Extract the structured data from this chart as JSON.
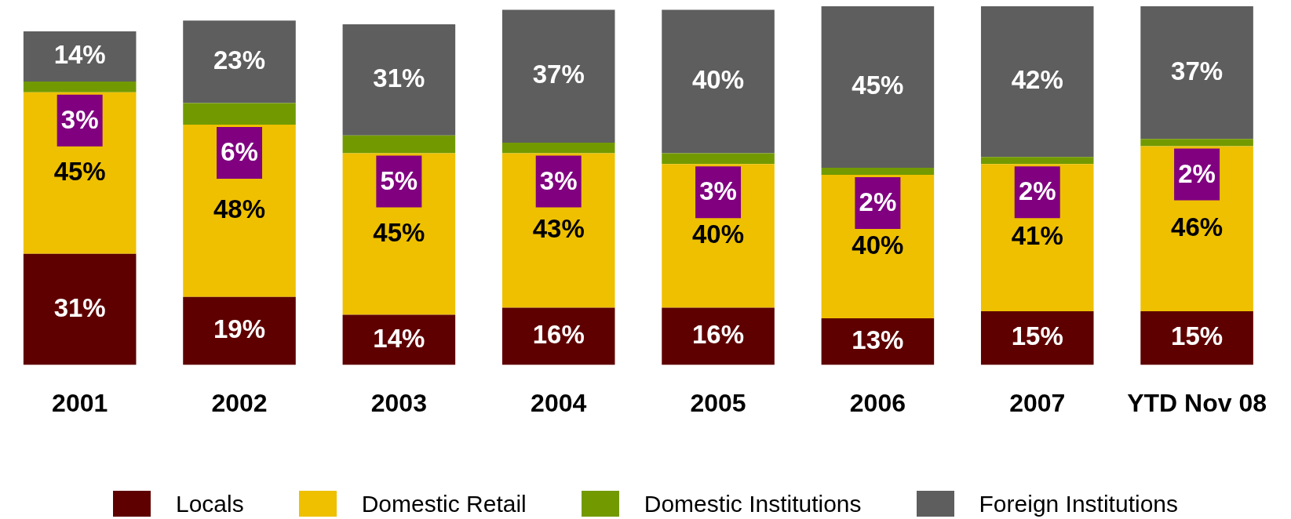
{
  "chart_data": {
    "type": "bar",
    "stacked": true,
    "legend": "bottom",
    "categories": [
      "2001",
      "2002",
      "2003",
      "2004",
      "2005",
      "2006",
      "2007",
      "YTD Nov 08"
    ],
    "series": [
      {
        "name": "Locals",
        "color": "#5e0000",
        "values": [
          31,
          19,
          14,
          16,
          16,
          13,
          15,
          15
        ],
        "value_labels": [
          "31%",
          "19%",
          "14%",
          "16%",
          "16%",
          "13%",
          "15%",
          "15%"
        ]
      },
      {
        "name": "Domestic Retail",
        "color": "#eec000",
        "values": [
          45,
          48,
          45,
          43,
          40,
          40,
          41,
          46
        ],
        "value_labels": [
          "45%",
          "48%",
          "45%",
          "43%",
          "40%",
          "40%",
          "41%",
          "46%"
        ]
      },
      {
        "name": "Domestic Institutions",
        "color": "#729a00",
        "values": [
          3,
          6,
          5,
          3,
          3,
          2,
          2,
          2
        ],
        "value_labels": [
          "3%",
          "6%",
          "5%",
          "3%",
          "3%",
          "2%",
          "2%",
          "2%"
        ]
      },
      {
        "name": "Foreign Institutions",
        "color": "#5e5e5e",
        "values": [
          14,
          23,
          31,
          37,
          40,
          45,
          42,
          37
        ],
        "value_labels": [
          "14%",
          "23%",
          "31%",
          "37%",
          "40%",
          "45%",
          "42%",
          "37%"
        ]
      }
    ]
  }
}
